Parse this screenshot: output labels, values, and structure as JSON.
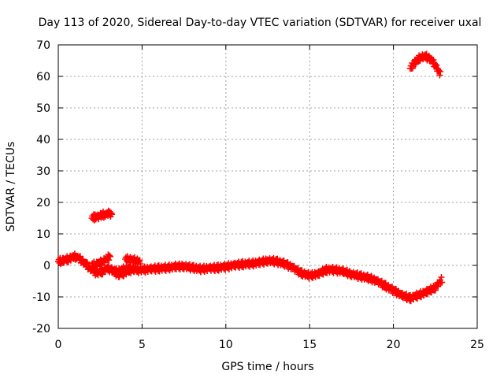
{
  "chart_data": {
    "type": "scatter",
    "title": "Day 113 of 2020, Sidereal Day-to-day VTEC variation (SDTVAR) for receiver uxal",
    "xlabel": "GPS time / hours",
    "ylabel": "SDTVAR / TECUs",
    "xlim": [
      0,
      25
    ],
    "ylim": [
      -20,
      70
    ],
    "xticks": [
      0,
      5,
      10,
      15,
      20,
      25
    ],
    "yticks": [
      -20,
      -10,
      0,
      10,
      20,
      30,
      40,
      50,
      60,
      70
    ],
    "grid": true,
    "marker": "plus",
    "color": "#ff0000",
    "series": [
      {
        "name": "main_trace",
        "x": [
          0.0,
          0.3,
          0.6,
          0.9,
          1.1,
          1.4,
          1.7,
          2.0,
          2.3,
          2.6,
          2.9,
          3.2,
          3.5,
          3.8,
          4.1,
          4.4,
          4.7,
          5.0,
          5.5,
          6.0,
          6.5,
          7.0,
          7.5,
          8.0,
          8.5,
          9.0,
          9.5,
          10.0,
          10.5,
          11.0,
          11.5,
          12.0,
          12.5,
          13.0,
          13.5,
          14.0,
          14.5,
          15.0,
          15.5,
          16.0,
          16.5,
          17.0,
          17.5,
          18.0,
          18.5,
          19.0,
          19.5,
          20.0,
          20.5,
          21.0,
          21.5,
          22.0,
          22.5,
          22.9
        ],
        "y": [
          1.2,
          1.5,
          2.0,
          2.6,
          2.8,
          1.5,
          0.0,
          -1.5,
          -2.5,
          -2.0,
          -1.0,
          -1.5,
          -2.0,
          -1.5,
          -1.0,
          -1.3,
          -1.5,
          -1.5,
          -1.2,
          -1.0,
          -0.8,
          -0.5,
          -0.3,
          -0.8,
          -1.2,
          -1.0,
          -0.8,
          -0.5,
          0.0,
          0.3,
          0.5,
          0.8,
          1.5,
          1.2,
          0.5,
          -0.8,
          -2.5,
          -3.3,
          -2.8,
          -1.5,
          -1.5,
          -2.0,
          -2.8,
          -3.5,
          -4.0,
          -5.0,
          -6.5,
          -8.0,
          -9.5,
          -10.5,
          -9.5,
          -8.5,
          -7.0,
          -4.5
        ]
      },
      {
        "name": "segment_branch_a",
        "x": [
          2.0,
          2.3,
          2.6,
          2.9,
          3.1
        ],
        "y": [
          0.0,
          0.3,
          1.0,
          2.0,
          3.0
        ]
      },
      {
        "name": "segment_branch_b",
        "x": [
          3.3,
          3.6,
          3.9,
          4.2,
          4.5
        ],
        "y": [
          -2.0,
          -3.0,
          -2.5,
          -1.8,
          -1.2
        ]
      },
      {
        "name": "segment_branch_c",
        "x": [
          4.0,
          4.3,
          4.6,
          4.9
        ],
        "y": [
          2.0,
          1.8,
          1.5,
          1.0
        ]
      },
      {
        "name": "segment_near_16",
        "x": [
          2.0,
          2.2,
          2.4,
          2.6,
          2.8,
          3.0,
          3.2
        ],
        "y": [
          15.0,
          15.3,
          15.6,
          15.9,
          16.2,
          16.3,
          16.2
        ]
      },
      {
        "name": "segment_near_64",
        "x": [
          21.0,
          21.3,
          21.6,
          21.9,
          22.2,
          22.5,
          22.8
        ],
        "y": [
          62.5,
          64.5,
          66.0,
          66.3,
          65.5,
          63.5,
          60.5
        ]
      }
    ]
  }
}
